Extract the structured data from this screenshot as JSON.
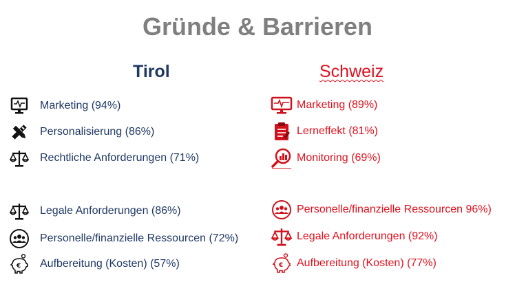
{
  "title": "Gründe & Barrieren",
  "tirol": {
    "heading": "Tirol",
    "items": [
      {
        "label": "Marketing (94%)",
        "icon": "monitor-pulse-icon"
      },
      {
        "label": "Personalisierung (86%)",
        "icon": "pencil-ruler-icon"
      },
      {
        "label": "Rechtliche Anforderungen (71%)",
        "icon": "scales-icon"
      },
      {
        "label": "Legale Anforderungen (86%)",
        "icon": "scales-icon"
      },
      {
        "label": "Personelle/finanzielle Ressourcen (72%)",
        "icon": "people-group-icon"
      },
      {
        "label": "Aufbereitung (Kosten) (57%)",
        "icon": "piggy-bank-icon"
      }
    ]
  },
  "schweiz": {
    "heading": "Schweiz",
    "items": [
      {
        "label": "Marketing (89%)",
        "icon": "monitor-pulse-icon"
      },
      {
        "label": "Lerneffekt (81%)",
        "icon": "checklist-icon"
      },
      {
        "label": "Monitoring (69%)",
        "icon": "magnifier-chart-icon"
      },
      {
        "label": "Personelle/finanzielle Ressourcen 96%)",
        "icon": "people-group-icon"
      },
      {
        "label": "Legale Anforderungen (92%)",
        "icon": "scales-icon"
      },
      {
        "label": "Aufbereitung (Kosten) (77%)",
        "icon": "piggy-bank-icon"
      }
    ]
  },
  "colors": {
    "tirol": "#1f3864",
    "schweiz": "#e0101d",
    "title": "#7f7f7f"
  }
}
